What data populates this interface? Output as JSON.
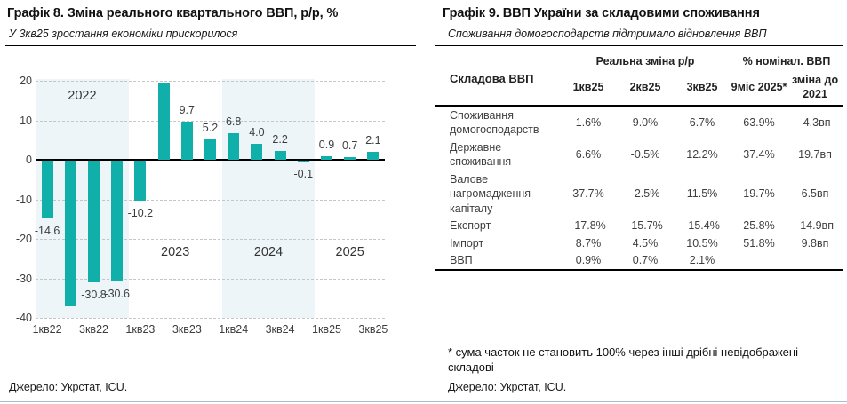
{
  "left_panel": {
    "title": "Графік 8. Зміна реального квартального ВВП, р/р, %",
    "subtitle": "У 3кв25 зростання економіки прискорилося",
    "source": "Джерело: Укрстат, ICU."
  },
  "right_panel": {
    "title": "Графік 9. ВВП України за складовими споживання",
    "subtitle": "Споживання домогосподарств підтримало відновлення ВВП",
    "table": {
      "col_header_main": "Складова ВВП",
      "group_headers": [
        "Реальна зміна р/р",
        "% номінал. ВВП"
      ],
      "col_headers": [
        "1кв25",
        "2кв25",
        "3кв25",
        "9міс 2025*",
        "зміна до 2021"
      ],
      "rows": [
        {
          "label": "Споживання домогосподарств",
          "values": [
            "1.6%",
            "9.0%",
            "6.7%",
            "63.9%",
            "-4.3вп"
          ]
        },
        {
          "label": "Державне споживання",
          "values": [
            "6.6%",
            "-0.5%",
            "12.2%",
            "37.4%",
            "19.7вп"
          ]
        },
        {
          "label": "Валове нагромадження капіталу",
          "values": [
            "37.7%",
            "-2.5%",
            "11.5%",
            "19.7%",
            "6.5вп"
          ]
        },
        {
          "label": "Експорт",
          "values": [
            "-17.8%",
            "-15.7%",
            "-15.4%",
            "25.8%",
            "-14.9вп"
          ]
        },
        {
          "label": "Імпорт",
          "values": [
            "8.7%",
            "4.5%",
            "10.5%",
            "51.8%",
            "9.8вп"
          ]
        },
        {
          "label": "ВВП",
          "values": [
            "0.9%",
            "0.7%",
            "2.1%",
            "",
            ""
          ]
        }
      ]
    },
    "footnote": "* сума часток не становить 100% через інші дрібні невідображені складові",
    "source": "Джерело: Укрстат, ICU."
  },
  "chart_data": [
    {
      "type": "bar",
      "title": "Графік 8. Зміна реального квартального ВВП, р/р, %",
      "subtitle": "У 3кв25 зростання економіки прискорилося",
      "xlabel": "",
      "ylabel": "",
      "ylim": [
        -40,
        20
      ],
      "yticks": [
        20,
        10,
        0,
        -10,
        -20,
        -30,
        -40
      ],
      "grid": true,
      "categories": [
        "1кв22",
        "2кв22",
        "3кв22",
        "4кв22",
        "1кв23",
        "2кв23",
        "3кв23",
        "4кв23",
        "1кв24",
        "2кв24",
        "3кв24",
        "4кв24",
        "1кв25",
        "2кв25",
        "3кв25"
      ],
      "values": [
        -14.6,
        -36.9,
        -30.8,
        -30.6,
        -10.2,
        19.5,
        9.7,
        5.2,
        6.8,
        4.0,
        2.2,
        -0.1,
        0.9,
        0.7,
        2.1
      ],
      "bar_labels": [
        "-14.6",
        null,
        "-30.8",
        "-30.6",
        "-10.2",
        null,
        "9.7",
        "5.2",
        "6.8",
        "4.0",
        "2.2",
        "-0.1",
        "0.9",
        "0.7",
        "2.1"
      ],
      "x_tick_slots": [
        0,
        2,
        4,
        6,
        8,
        10,
        12,
        14
      ],
      "x_tick_labels": [
        "1кв22",
        "3кв22",
        "1кв23",
        "3кв23",
        "1кв24",
        "3кв24",
        "1кв25",
        "3кв25"
      ],
      "year_bands": [
        {
          "label": "2022",
          "start": 0,
          "end": 4,
          "shaded": true,
          "label_pos": "top"
        },
        {
          "label": "2023",
          "start": 4,
          "end": 8,
          "shaded": false,
          "label_pos": "mid"
        },
        {
          "label": "2024",
          "start": 8,
          "end": 12,
          "shaded": true,
          "label_pos": "mid"
        },
        {
          "label": "2025",
          "start": 12,
          "end": 15,
          "shaded": false,
          "label_pos": "mid"
        }
      ],
      "bar_color": "#10afaa",
      "band_color": "#edf5f8"
    },
    {
      "type": "table",
      "title": "Графік 9. ВВП України за складовими споживання",
      "columns": [
        "Складова ВВП",
        "1кв25",
        "2кв25",
        "3кв25",
        "9міс 2025*",
        "зміна до 2021"
      ],
      "rows": [
        [
          "Споживання домогосподарств",
          "1.6%",
          "9.0%",
          "6.7%",
          "63.9%",
          "-4.3вп"
        ],
        [
          "Державне споживання",
          "6.6%",
          "-0.5%",
          "12.2%",
          "37.4%",
          "19.7вп"
        ],
        [
          "Валове нагромадження капіталу",
          "37.7%",
          "-2.5%",
          "11.5%",
          "19.7%",
          "6.5вп"
        ],
        [
          "Експорт",
          "-17.8%",
          "-15.7%",
          "-15.4%",
          "25.8%",
          "-14.9вп"
        ],
        [
          "Імпорт",
          "8.7%",
          "4.5%",
          "10.5%",
          "51.8%",
          "9.8вп"
        ],
        [
          "ВВП",
          "0.9%",
          "0.7%",
          "2.1%",
          "",
          ""
        ]
      ]
    }
  ]
}
